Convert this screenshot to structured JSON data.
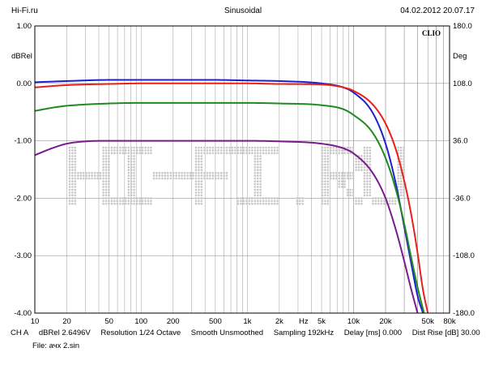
{
  "header": {
    "site": "Hi-Fi.ru",
    "signal": "Sinusoidal",
    "datetime": "04.02.2012 20.07.17"
  },
  "badge": "CLIO",
  "footer": {
    "channel": "CH A",
    "level": "dBRel 2.6496V",
    "resolution": "Resolution 1/24 Octave",
    "smooth": "Smooth Unsmoothed",
    "sampling": "Sampling 192kHz",
    "delay": "Delay [ms] 0.000",
    "dist_rise": "Dist Rise [dB] 30.00",
    "file": "File: ачх 2.sin"
  },
  "watermark": "HI-FI.RU",
  "colors": {
    "background": "#ffffff",
    "grid": "#9a9a9a",
    "frame": "#000000",
    "watermark": "#c8c8c8"
  },
  "chart_data": {
    "type": "line",
    "x_scale": "log",
    "xlim": [
      10,
      80000
    ],
    "ylim": [
      -4.0,
      1.0
    ],
    "ylim_right": [
      -180.0,
      180.0
    ],
    "ylabel": "dBRel",
    "ylabel_right": "Deg",
    "x_unit": "Hz",
    "x_ticks": [
      {
        "v": 10,
        "label": "10"
      },
      {
        "v": 20,
        "label": "20"
      },
      {
        "v": 50,
        "label": "50"
      },
      {
        "v": 100,
        "label": "100"
      },
      {
        "v": 200,
        "label": "200"
      },
      {
        "v": 500,
        "label": "500"
      },
      {
        "v": 1000,
        "label": "1k"
      },
      {
        "v": 2000,
        "label": "2k"
      },
      {
        "v": 5000,
        "label": "5k"
      },
      {
        "v": 10000,
        "label": "10k"
      },
      {
        "v": 20000,
        "label": "20k"
      },
      {
        "v": 50000,
        "label": "50k"
      },
      {
        "v": 80000,
        "label": "80k"
      }
    ],
    "y_ticks": [
      {
        "v": 1.0,
        "label": "1.00"
      },
      {
        "v": 0.0,
        "label": "0.00"
      },
      {
        "v": -1.0,
        "label": "-1.00"
      },
      {
        "v": -2.0,
        "label": "-2.00"
      },
      {
        "v": -3.0,
        "label": "-3.00"
      },
      {
        "v": -4.0,
        "label": "-4.00"
      }
    ],
    "y_ticks_right": [
      {
        "v": 180.0,
        "label": "180.0"
      },
      {
        "v": 108.0,
        "label": "108.0"
      },
      {
        "v": 36.0,
        "label": "36.0"
      },
      {
        "v": -36.0,
        "label": "-36.0"
      },
      {
        "v": -108.0,
        "label": "-108.0"
      },
      {
        "v": -180.0,
        "label": "-180.0"
      }
    ],
    "grid": true,
    "series": [
      {
        "color": "#1f1fcc",
        "x": [
          10,
          20,
          50,
          100,
          500,
          1000,
          2000,
          5000,
          8000,
          10000,
          15000,
          20000,
          25000,
          30000,
          35000,
          40000,
          45000
        ],
        "y": [
          0.02,
          0.04,
          0.06,
          0.06,
          0.06,
          0.05,
          0.04,
          0.0,
          -0.07,
          -0.16,
          -0.5,
          -1.05,
          -1.75,
          -2.5,
          -3.15,
          -3.7,
          -4.0
        ]
      },
      {
        "color": "#e8201a",
        "x": [
          10,
          20,
          50,
          100,
          500,
          1000,
          2000,
          5000,
          8000,
          10000,
          15000,
          20000,
          25000,
          30000,
          35000,
          40000,
          45000,
          50000
        ],
        "y": [
          -0.07,
          -0.03,
          -0.01,
          0.0,
          0.0,
          0.0,
          -0.01,
          -0.02,
          -0.07,
          -0.13,
          -0.36,
          -0.7,
          -1.15,
          -1.7,
          -2.3,
          -2.95,
          -3.6,
          -4.0
        ]
      },
      {
        "color": "#1f8a1f",
        "x": [
          10,
          15,
          20,
          50,
          100,
          500,
          1000,
          2000,
          5000,
          8000,
          10000,
          15000,
          20000,
          25000,
          30000,
          35000,
          40000,
          46000
        ],
        "y": [
          -0.48,
          -0.42,
          -0.39,
          -0.35,
          -0.34,
          -0.34,
          -0.34,
          -0.35,
          -0.38,
          -0.45,
          -0.55,
          -0.85,
          -1.3,
          -1.85,
          -2.45,
          -3.05,
          -3.55,
          -4.0
        ]
      },
      {
        "color": "#7a1a8c",
        "x": [
          10,
          15,
          20,
          30,
          50,
          100,
          500,
          1000,
          2000,
          5000,
          8000,
          10000,
          15000,
          20000,
          25000,
          30000,
          35000,
          40000
        ],
        "y": [
          -1.25,
          -1.12,
          -1.05,
          -1.01,
          -1.0,
          -1.0,
          -1.0,
          -1.0,
          -1.01,
          -1.05,
          -1.13,
          -1.22,
          -1.55,
          -2.0,
          -2.55,
          -3.1,
          -3.6,
          -4.0
        ]
      }
    ]
  }
}
